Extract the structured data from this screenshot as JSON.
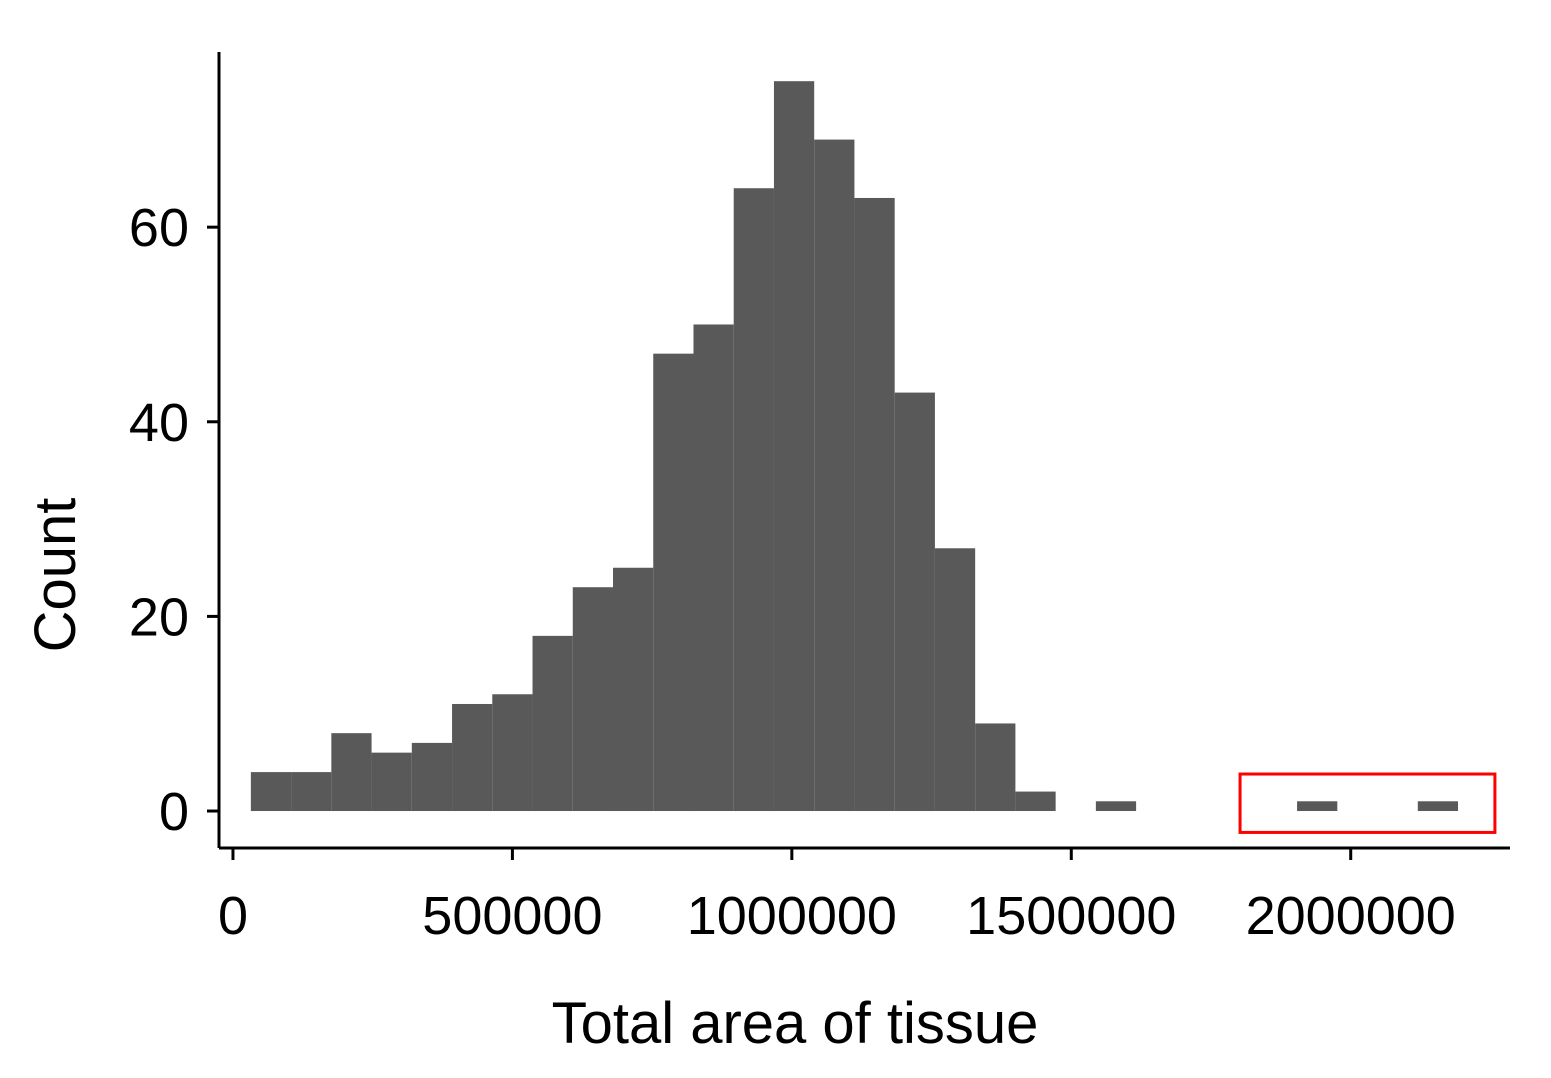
{
  "chart_data": {
    "type": "bar",
    "xlabel": "Total area of tissue",
    "ylabel": "Count",
    "xlim": [
      -25000,
      2285000
    ],
    "ylim": [
      -3.8,
      78
    ],
    "x_ticks": [
      {
        "value": 0,
        "label": "0"
      },
      {
        "value": 500000,
        "label": "500000"
      },
      {
        "value": 1000000,
        "label": "1000000"
      },
      {
        "value": 1500000,
        "label": "1500000"
      },
      {
        "value": 2000000,
        "label": "2000000"
      }
    ],
    "y_ticks": [
      {
        "value": 0,
        "label": "0"
      },
      {
        "value": 20,
        "label": "20"
      },
      {
        "value": 40,
        "label": "40"
      },
      {
        "value": 60,
        "label": "60"
      }
    ],
    "bins": [
      {
        "x0": 32000,
        "x1": 104000,
        "count": 4
      },
      {
        "x0": 104000,
        "x1": 176000,
        "count": 4
      },
      {
        "x0": 176000,
        "x1": 248000,
        "count": 8
      },
      {
        "x0": 248000,
        "x1": 320000,
        "count": 6
      },
      {
        "x0": 320000,
        "x1": 392000,
        "count": 7
      },
      {
        "x0": 392000,
        "x1": 464000,
        "count": 11
      },
      {
        "x0": 464000,
        "x1": 536000,
        "count": 12
      },
      {
        "x0": 536000,
        "x1": 608000,
        "count": 18
      },
      {
        "x0": 608000,
        "x1": 680000,
        "count": 23
      },
      {
        "x0": 680000,
        "x1": 752000,
        "count": 25
      },
      {
        "x0": 752000,
        "x1": 824000,
        "count": 47
      },
      {
        "x0": 824000,
        "x1": 896000,
        "count": 50
      },
      {
        "x0": 896000,
        "x1": 968000,
        "count": 64
      },
      {
        "x0": 968000,
        "x1": 1040000,
        "count": 75
      },
      {
        "x0": 1040000,
        "x1": 1112000,
        "count": 69
      },
      {
        "x0": 1112000,
        "x1": 1184000,
        "count": 63
      },
      {
        "x0": 1184000,
        "x1": 1256000,
        "count": 43
      },
      {
        "x0": 1256000,
        "x1": 1328000,
        "count": 27
      },
      {
        "x0": 1328000,
        "x1": 1400000,
        "count": 9
      },
      {
        "x0": 1400000,
        "x1": 1472000,
        "count": 2
      },
      {
        "x0": 1472000,
        "x1": 1544000,
        "count": 0
      },
      {
        "x0": 1544000,
        "x1": 1616000,
        "count": 1
      },
      {
        "x0": 1616000,
        "x1": 1688000,
        "count": 0
      },
      {
        "x0": 1688000,
        "x1": 1760000,
        "count": 0
      },
      {
        "x0": 1760000,
        "x1": 1832000,
        "count": 0
      },
      {
        "x0": 1832000,
        "x1": 1904000,
        "count": 0
      },
      {
        "x0": 1904000,
        "x1": 1976000,
        "count": 1
      },
      {
        "x0": 1976000,
        "x1": 2048000,
        "count": 0
      },
      {
        "x0": 2048000,
        "x1": 2120000,
        "count": 0
      },
      {
        "x0": 2120000,
        "x1": 2192000,
        "count": 1
      }
    ],
    "bar_color": "#595959",
    "highlight_box": {
      "x0": 1802000,
      "x1": 2258000,
      "y0": -2.2,
      "y1": 3.8,
      "color": "#ff0000"
    },
    "grid": false,
    "legend": "none"
  }
}
